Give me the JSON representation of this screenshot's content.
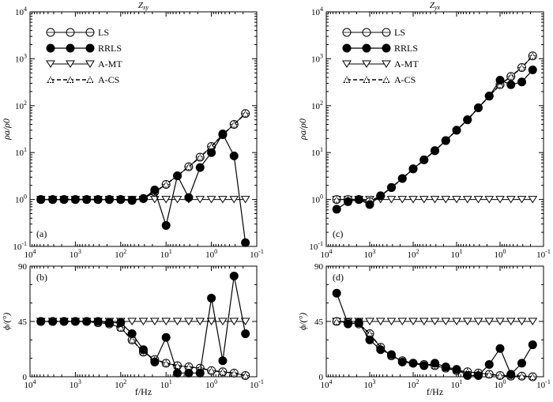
{
  "figure": {
    "xlabel_shared": "f/Hz"
  },
  "chart_data": [
    {
      "id": "a",
      "type": "line",
      "panel_label": "(a)",
      "title": "Zxy",
      "ylabel": "ρa/ρ0",
      "yscale": "log",
      "ylim_exp": [
        -1,
        4
      ],
      "xlim_exp": [
        4,
        -1
      ],
      "xscale": "log-reversed",
      "x_ticks": [
        "10^4",
        "10^3",
        "10^2",
        "10^1",
        "10^0",
        "10^-1"
      ],
      "y_ticks": [
        "10^-1",
        "10^0",
        "10^1",
        "10^2",
        "10^3",
        "10^4"
      ],
      "legend": [
        "LS",
        "RRLS",
        "A-MT",
        "A-CS"
      ],
      "series": [
        {
          "name": "LS",
          "marker": "open-circle-plus",
          "x": [
            3.76,
            3.5,
            3.25,
            3.0,
            2.75,
            2.5,
            2.25,
            2.0,
            1.75,
            1.5,
            1.25,
            1.0,
            0.75,
            0.5,
            0.25,
            0.0,
            -0.25,
            -0.5,
            -0.75
          ],
          "y": [
            1,
            1,
            1,
            1,
            1,
            1,
            1,
            1,
            0.97,
            1.05,
            1.45,
            2.1,
            3.2,
            5.0,
            8.0,
            13.5,
            24,
            40,
            68
          ]
        },
        {
          "name": "RRLS",
          "marker": "filled-circle",
          "x": [
            3.76,
            3.5,
            3.25,
            3.0,
            2.75,
            2.5,
            2.25,
            2.0,
            1.75,
            1.5,
            1.25,
            1.0,
            0.75,
            0.5,
            0.25,
            0.0,
            -0.25,
            -0.5,
            -0.75
          ],
          "y": [
            1,
            1,
            1,
            1,
            1,
            1,
            1,
            1,
            0.95,
            1.05,
            1.6,
            0.28,
            3.2,
            1.1,
            4.8,
            10,
            25,
            8.5,
            0.12
          ]
        },
        {
          "name": "A-MT",
          "marker": "open-triangle-down",
          "x": [
            3.76,
            3.5,
            3.25,
            3.0,
            2.75,
            2.5,
            2.25,
            2.0,
            1.75,
            1.5,
            1.25,
            1.0,
            0.75,
            0.5,
            0.25,
            0.0,
            -0.25,
            -0.5,
            -0.75
          ],
          "y": [
            1,
            1,
            1,
            1,
            1,
            1,
            1,
            1,
            1,
            1,
            1,
            1,
            1,
            1,
            1,
            1,
            1,
            1,
            1
          ]
        },
        {
          "name": "A-CS",
          "marker": "dashed-triangle",
          "x": [
            3.76,
            3.5,
            3.25,
            3.0,
            2.75,
            2.5,
            2.25,
            2.0,
            1.75,
            1.5,
            1.25,
            1.0,
            0.75,
            0.5,
            0.25,
            0.0,
            -0.25,
            -0.5,
            -0.75
          ],
          "y": [
            1,
            1,
            1,
            1,
            1,
            1,
            1,
            1,
            0.97,
            1.05,
            1.45,
            2.1,
            3.2,
            5.0,
            8.0,
            13.5,
            24,
            40,
            68
          ]
        }
      ]
    },
    {
      "id": "b",
      "type": "line",
      "panel_label": "(b)",
      "title": "",
      "ylabel": "ϕ/(°)",
      "yscale": "linear",
      "ylim": [
        0,
        90
      ],
      "xlim_exp": [
        4,
        -1
      ],
      "xscale": "log-reversed",
      "x_ticks": [
        "10^4",
        "10^3",
        "10^2",
        "10^1",
        "10^0",
        "10^-1"
      ],
      "y_ticks": [
        "0",
        "45",
        "90"
      ],
      "xlabel": "f/Hz",
      "series": [
        {
          "name": "LS",
          "marker": "open-circle-plus",
          "x": [
            3.76,
            3.5,
            3.25,
            3.0,
            2.75,
            2.5,
            2.25,
            2.0,
            1.75,
            1.5,
            1.25,
            1.0,
            0.75,
            0.5,
            0.25,
            0.0,
            -0.25,
            -0.5,
            -0.75
          ],
          "y": [
            45,
            45,
            45,
            45,
            45,
            44,
            43,
            40,
            30,
            20,
            14,
            11,
            9,
            8,
            7,
            5,
            4,
            3,
            1
          ]
        },
        {
          "name": "RRLS",
          "marker": "filled-circle",
          "x": [
            3.76,
            3.5,
            3.25,
            3.0,
            2.75,
            2.5,
            2.25,
            2.0,
            1.75,
            1.5,
            1.25,
            1.0,
            0.75,
            0.5,
            0.25,
            0.0,
            -0.25,
            -0.5,
            -0.75
          ],
          "y": [
            45,
            45,
            45,
            45,
            45,
            45,
            44,
            44,
            35,
            22,
            12,
            32,
            3,
            3,
            3,
            64,
            13,
            82,
            35
          ]
        },
        {
          "name": "A-MT",
          "marker": "open-triangle-down",
          "x": [
            3.76,
            3.5,
            3.25,
            3.0,
            2.75,
            2.5,
            2.25,
            2.0,
            1.75,
            1.5,
            1.25,
            1.0,
            0.75,
            0.5,
            0.25,
            0.0,
            -0.25,
            -0.5,
            -0.75
          ],
          "y": [
            45,
            45,
            45,
            45,
            45,
            45,
            45,
            45,
            45,
            45,
            45,
            45,
            45,
            45,
            45,
            45,
            45,
            45,
            45
          ]
        },
        {
          "name": "A-CS",
          "marker": "dashed-triangle",
          "x": [
            3.76,
            3.5,
            3.25,
            3.0,
            2.75,
            2.5,
            2.25,
            2.0,
            1.75,
            1.5,
            1.25,
            1.0,
            0.75,
            0.5,
            0.25,
            0.0,
            -0.25,
            -0.5,
            -0.75
          ],
          "y": [
            45,
            45,
            45,
            45,
            45,
            44,
            43,
            40,
            30,
            20,
            14,
            11,
            9,
            8,
            7,
            5,
            4,
            3,
            1
          ]
        }
      ]
    },
    {
      "id": "c",
      "type": "line",
      "panel_label": "(c)",
      "title": "Zyx",
      "ylabel": "ρa/ρ0",
      "yscale": "log",
      "ylim_exp": [
        -1,
        4
      ],
      "xlim_exp": [
        4,
        -1
      ],
      "xscale": "log-reversed",
      "x_ticks": [
        "10^4",
        "10^3",
        "10^2",
        "10^1",
        "10^0",
        "10^-1"
      ],
      "y_ticks": [
        "10^-1",
        "10^0",
        "10^1",
        "10^2",
        "10^3",
        "10^4"
      ],
      "legend": [
        "LS",
        "RRLS",
        "A-MT",
        "A-CS"
      ],
      "series": [
        {
          "name": "LS",
          "marker": "open-circle-plus",
          "x": [
            3.76,
            3.5,
            3.25,
            3.0,
            2.75,
            2.5,
            2.25,
            2.0,
            1.75,
            1.5,
            1.25,
            1.0,
            0.75,
            0.5,
            0.25,
            0.0,
            -0.25,
            -0.5,
            -0.75
          ],
          "y": [
            1,
            1,
            1,
            0.9,
            1.2,
            1.8,
            2.8,
            4.5,
            7,
            11,
            18,
            30,
            50,
            90,
            160,
            280,
            420,
            650,
            1150
          ]
        },
        {
          "name": "RRLS",
          "marker": "filled-circle",
          "x": [
            3.76,
            3.5,
            3.25,
            3.0,
            2.75,
            2.5,
            2.25,
            2.0,
            1.75,
            1.5,
            1.25,
            1.0,
            0.75,
            0.5,
            0.25,
            0.0,
            -0.25,
            -0.5,
            -0.75
          ],
          "y": [
            0.62,
            0.9,
            1,
            0.78,
            1.2,
            1.8,
            2.8,
            4.5,
            7,
            11,
            18,
            30,
            50,
            90,
            160,
            350,
            280,
            320,
            580
          ]
        },
        {
          "name": "A-MT",
          "marker": "open-triangle-down",
          "x": [
            3.76,
            3.5,
            3.25,
            3.0,
            2.75,
            2.5,
            2.25,
            2.0,
            1.75,
            1.5,
            1.25,
            1.0,
            0.75,
            0.5,
            0.25,
            0.0,
            -0.25,
            -0.5,
            -0.75
          ],
          "y": [
            1,
            1,
            1,
            1,
            1,
            1,
            1,
            1,
            1,
            1,
            1,
            1,
            1,
            1,
            1,
            1,
            1,
            1,
            1
          ]
        },
        {
          "name": "A-CS",
          "marker": "dashed-triangle",
          "x": [
            3.76,
            3.5,
            3.25,
            3.0,
            2.75,
            2.5,
            2.25,
            2.0,
            1.75,
            1.5,
            1.25,
            1.0,
            0.75,
            0.5,
            0.25,
            0.0,
            -0.25,
            -0.5,
            -0.75
          ],
          "y": [
            1,
            1,
            1,
            0.9,
            1.2,
            1.8,
            2.8,
            4.5,
            7,
            11,
            18,
            30,
            50,
            90,
            160,
            280,
            420,
            650,
            1150
          ]
        }
      ]
    },
    {
      "id": "d",
      "type": "line",
      "panel_label": "(d)",
      "title": "",
      "ylabel": "ϕ/(°)",
      "yscale": "linear",
      "ylim": [
        0,
        90
      ],
      "xlim_exp": [
        4,
        -1
      ],
      "xscale": "log-reversed",
      "x_ticks": [
        "10^4",
        "10^3",
        "10^2",
        "10^1",
        "10^0",
        "10^-1"
      ],
      "y_ticks": [
        "0",
        "45",
        "90"
      ],
      "xlabel": "f/Hz",
      "series": [
        {
          "name": "LS",
          "marker": "open-circle-plus",
          "x": [
            3.76,
            3.5,
            3.25,
            3.0,
            2.75,
            2.5,
            2.25,
            2.0,
            1.75,
            1.5,
            1.25,
            1.0,
            0.75,
            0.5,
            0.25,
            0.0,
            -0.25,
            -0.5,
            -0.75
          ],
          "y": [
            45,
            44,
            43,
            35,
            24,
            17,
            13,
            11,
            10,
            9,
            7,
            5,
            4,
            3,
            2,
            1,
            0.5,
            0.5,
            0
          ]
        },
        {
          "name": "RRLS",
          "marker": "filled-circle",
          "x": [
            3.76,
            3.5,
            3.25,
            3.0,
            2.75,
            2.5,
            2.25,
            2.0,
            1.75,
            1.5,
            1.25,
            1.0,
            0.75,
            0.5,
            0.25,
            0.0,
            -0.25,
            -0.5,
            -0.75
          ],
          "y": [
            68,
            43,
            44,
            30,
            22,
            18,
            12,
            11,
            9,
            11,
            8,
            6,
            1,
            1,
            10,
            23,
            2,
            11,
            26
          ]
        },
        {
          "name": "A-MT",
          "marker": "open-triangle-down",
          "x": [
            3.76,
            3.5,
            3.25,
            3.0,
            2.75,
            2.5,
            2.25,
            2.0,
            1.75,
            1.5,
            1.25,
            1.0,
            0.75,
            0.5,
            0.25,
            0.0,
            -0.25,
            -0.5,
            -0.75
          ],
          "y": [
            45,
            45,
            45,
            45,
            45,
            45,
            45,
            45,
            45,
            45,
            45,
            45,
            45,
            45,
            45,
            45,
            45,
            45,
            45
          ]
        },
        {
          "name": "A-CS",
          "marker": "dashed-triangle",
          "x": [
            3.76,
            3.5,
            3.25,
            3.0,
            2.75,
            2.5,
            2.25,
            2.0,
            1.75,
            1.5,
            1.25,
            1.0,
            0.75,
            0.5,
            0.25,
            0.0,
            -0.25,
            -0.5,
            -0.75
          ],
          "y": [
            45,
            44,
            43,
            35,
            24,
            17,
            13,
            11,
            10,
            9,
            7,
            5,
            4,
            3,
            2,
            1,
            0.5,
            0.5,
            0
          ]
        }
      ]
    }
  ]
}
